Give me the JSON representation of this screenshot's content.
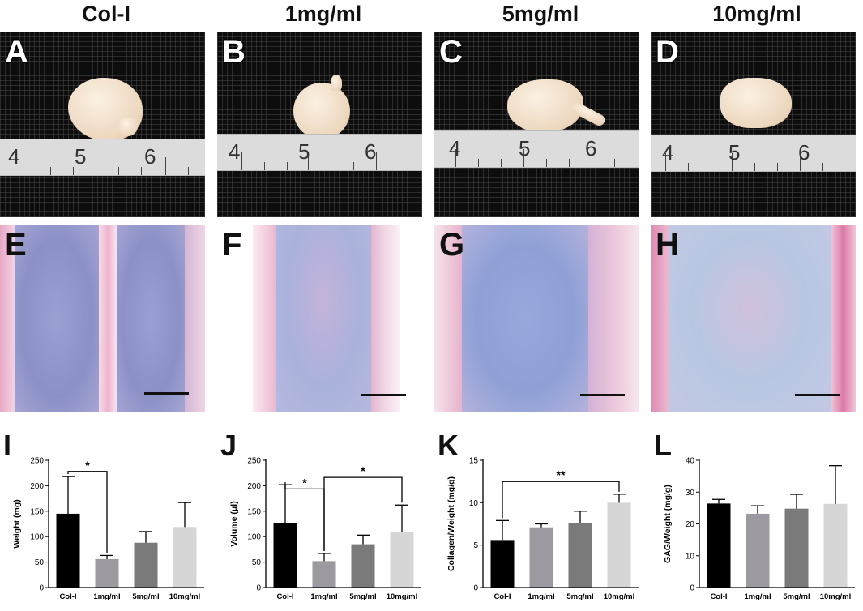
{
  "columns": [
    "Col-I",
    "1mg/ml",
    "5mg/ml",
    "10mg/ml"
  ],
  "photo_panels": [
    {
      "label": "A",
      "ruler": [
        "4",
        "5",
        "6"
      ]
    },
    {
      "label": "B",
      "ruler": [
        "4",
        "5",
        "6"
      ]
    },
    {
      "label": "C",
      "ruler": [
        "4",
        "5",
        "6"
      ]
    },
    {
      "label": "D",
      "ruler": [
        "4",
        "5",
        "6"
      ]
    }
  ],
  "histology_panels": [
    {
      "label": "E"
    },
    {
      "label": "F"
    },
    {
      "label": "G"
    },
    {
      "label": "H"
    }
  ],
  "colors": {
    "bar_colors": [
      "#000000",
      "#9c9aa0",
      "#7a7a7a",
      "#d6d6d6"
    ],
    "stain_blue": "#8e95c9",
    "stain_pink": "#e8a9c4"
  },
  "chart_data": [
    {
      "label": "I",
      "type": "bar",
      "categories": [
        "Col-I",
        "1mg/ml",
        "5mg/ml",
        "10mg/ml"
      ],
      "values": [
        145,
        56,
        88,
        119
      ],
      "errors": [
        73,
        7,
        22,
        48
      ],
      "ylabel": "Weight (mg)",
      "ylim": [
        0,
        250
      ],
      "yticks": [
        0,
        50,
        100,
        150,
        200,
        250
      ],
      "significance": [
        {
          "from": 0,
          "to": 1,
          "text": "*"
        }
      ]
    },
    {
      "label": "J",
      "type": "bar",
      "categories": [
        "Col-I",
        "1mg/ml",
        "5mg/ml",
        "10mg/ml"
      ],
      "values": [
        127,
        52,
        85,
        109
      ],
      "errors": [
        75,
        15,
        18,
        53
      ],
      "ylabel": "Volume (μl)",
      "ylim": [
        0,
        250
      ],
      "yticks": [
        0,
        50,
        100,
        150,
        200,
        250
      ],
      "significance": [
        {
          "from": 0,
          "to": 1,
          "text": "*"
        },
        {
          "from": 1,
          "to": 3,
          "text": "*"
        }
      ]
    },
    {
      "label": "K",
      "type": "bar",
      "categories": [
        "Col-I",
        "1mg/ml",
        "5mg/ml",
        "10mg/ml"
      ],
      "values": [
        5.6,
        7.1,
        7.6,
        10.0
      ],
      "errors": [
        2.3,
        0.4,
        1.4,
        1.0
      ],
      "ylabel": "Collagen/Weight (mg/g)",
      "ylim": [
        0,
        15
      ],
      "yticks": [
        0,
        5,
        10,
        15
      ],
      "significance": [
        {
          "from": 0,
          "to": 3,
          "text": "**"
        }
      ]
    },
    {
      "label": "L",
      "type": "bar",
      "categories": [
        "Col-I",
        "1mg/ml",
        "5mg/ml",
        "10mg/ml"
      ],
      "values": [
        26.4,
        23.2,
        24.8,
        26.3
      ],
      "errors": [
        1.3,
        2.5,
        4.5,
        12.0
      ],
      "ylabel": "GAG/Weight (mg/g)",
      "ylim": [
        0,
        40
      ],
      "yticks": [
        0,
        10,
        20,
        30,
        40
      ],
      "significance": []
    }
  ]
}
